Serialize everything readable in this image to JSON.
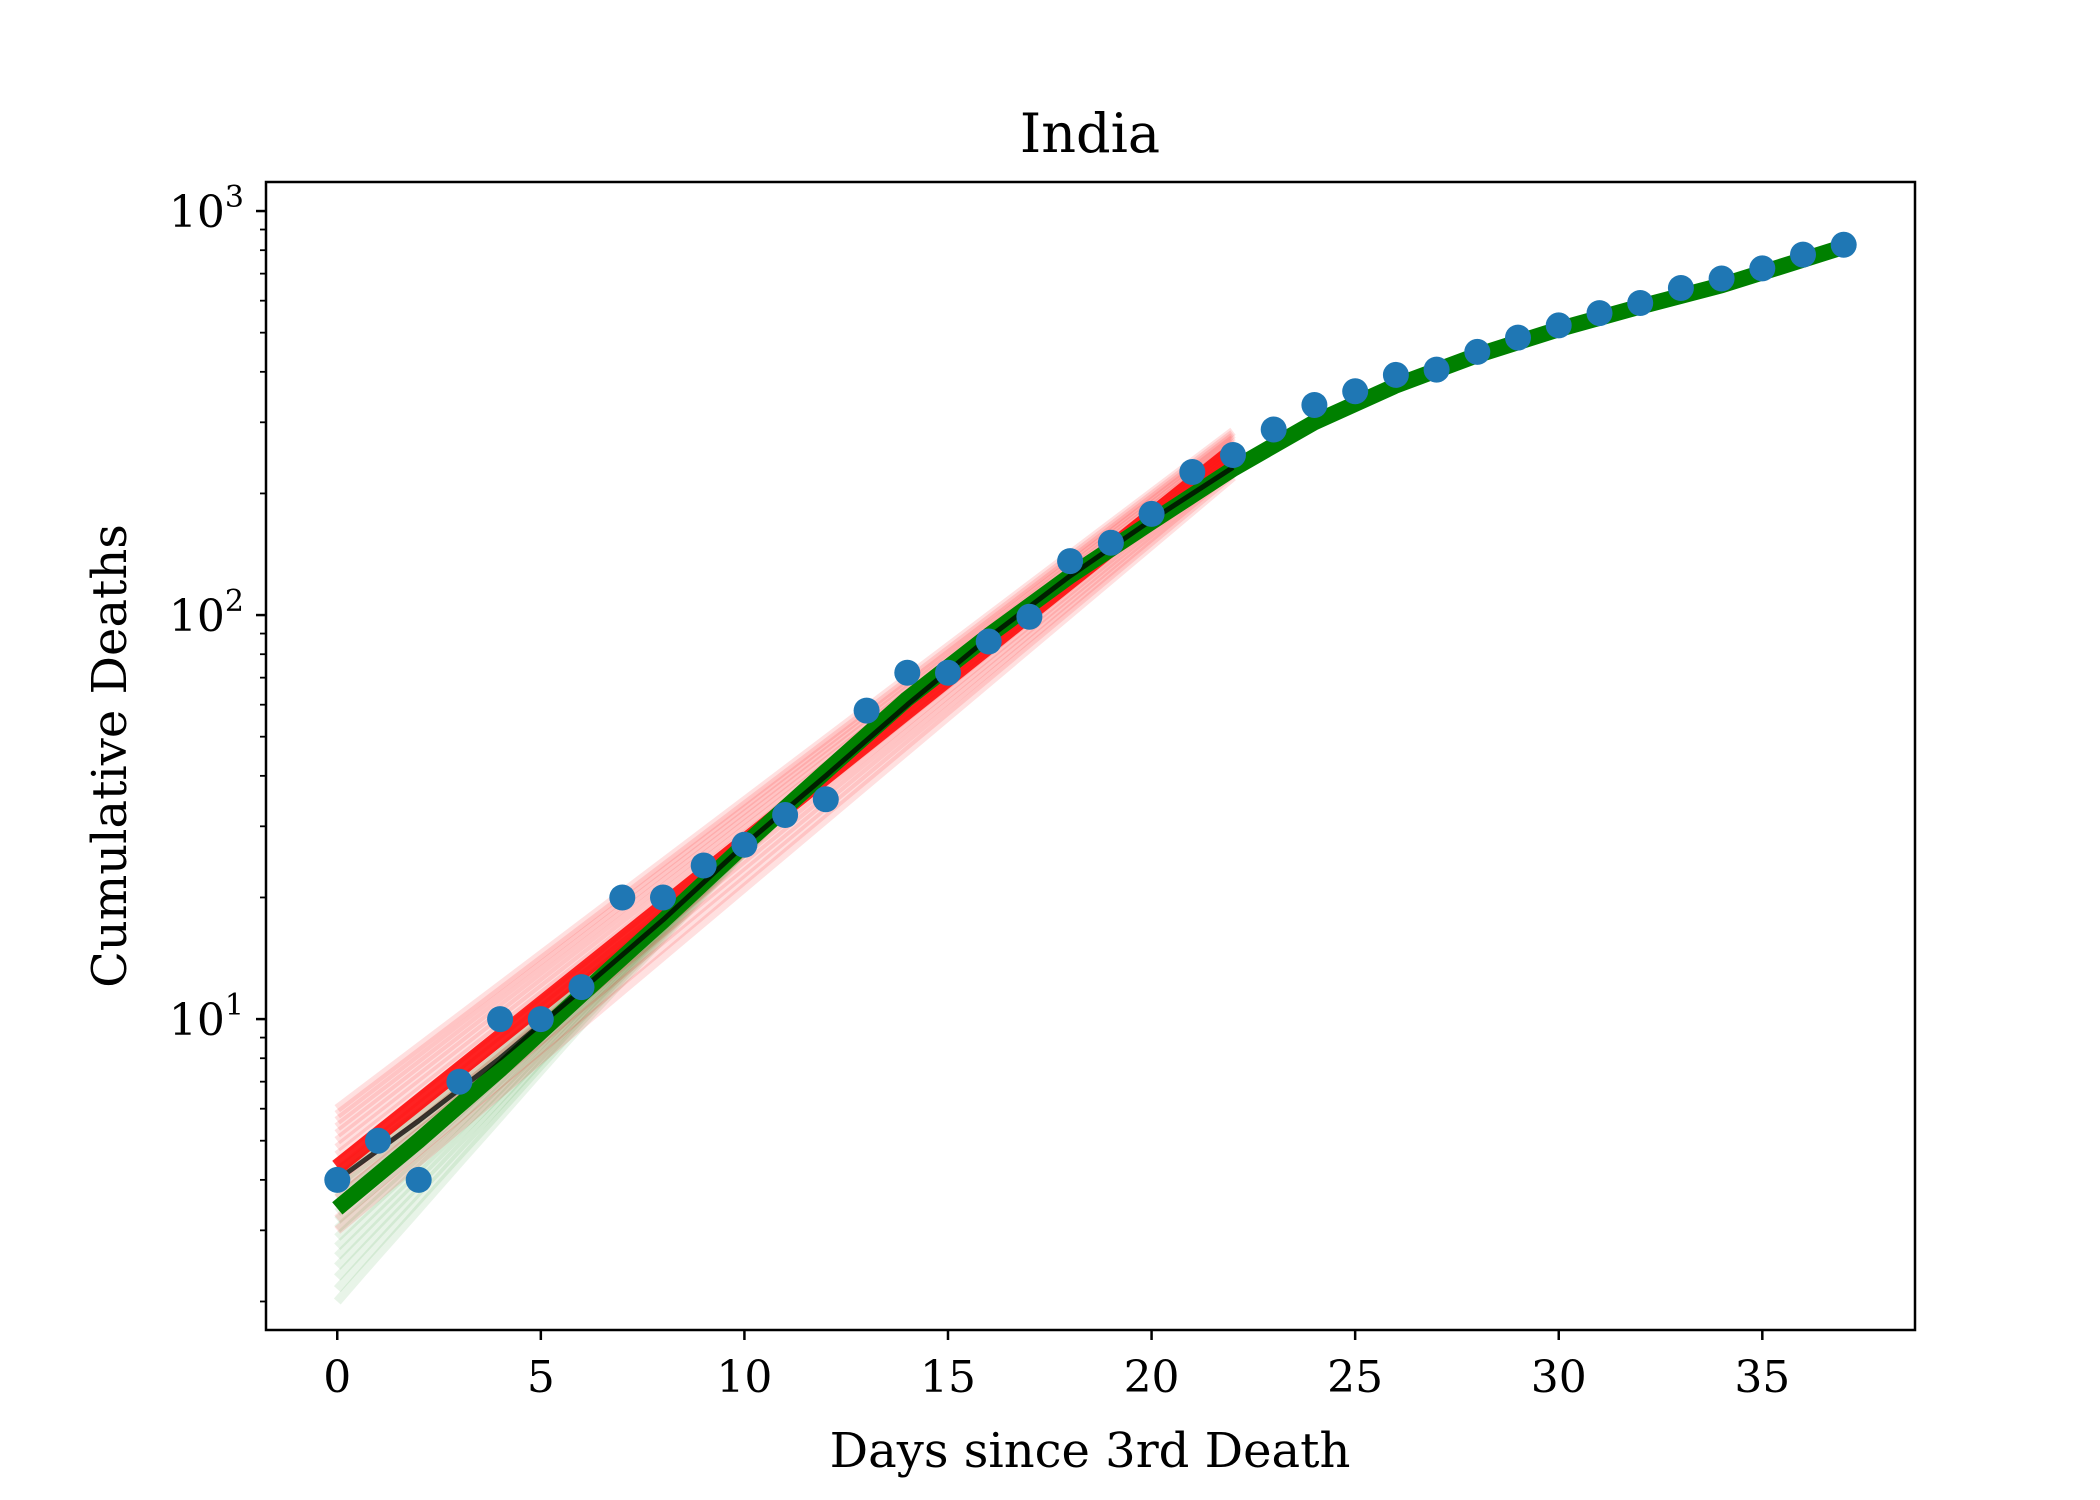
{
  "chart_data": {
    "type": "scatter",
    "title": "India",
    "xlabel": "Days since 3rd Death",
    "ylabel": "Cumulative Deaths",
    "yscale": "log",
    "xlim": [
      -1.75,
      38.75
    ],
    "ylim": [
      1.7,
      1180
    ],
    "grid": false,
    "legend": "none",
    "x_ticks": [
      0,
      5,
      10,
      15,
      20,
      25,
      30,
      35
    ],
    "y_ticks": [
      {
        "value": 10,
        "base": "10",
        "exp": "1"
      },
      {
        "value": 100,
        "base": "10",
        "exp": "2"
      },
      {
        "value": 1000,
        "base": "10",
        "exp": "3"
      }
    ],
    "observed": {
      "color": "#1f77b4",
      "x": [
        0,
        1,
        2,
        3,
        4,
        5,
        6,
        7,
        8,
        9,
        10,
        11,
        12,
        13,
        14,
        15,
        16,
        17,
        18,
        19,
        20,
        21,
        22,
        23,
        24,
        25,
        26,
        27,
        28,
        29,
        30,
        31,
        32,
        33,
        34,
        35,
        36,
        37
      ],
      "y": [
        4,
        5,
        4,
        7,
        10,
        10,
        12,
        20,
        20,
        24,
        27,
        32,
        35,
        58,
        72,
        72,
        86,
        99,
        136,
        151,
        178,
        226,
        249,
        288,
        331,
        358,
        393,
        405,
        448,
        486,
        521,
        559,
        592,
        645,
        681,
        721,
        780,
        825
      ]
    },
    "fit_early": {
      "color": "#ff0000",
      "x_range": [
        0,
        22
      ],
      "y_start": 4.3,
      "y_end": 255,
      "band_start": [
        3.0,
        6.0
      ],
      "band_end": [
        220,
        285
      ]
    },
    "fit_full": {
      "color": "#008000",
      "x": [
        0,
        2,
        4,
        6,
        8,
        10,
        12,
        14,
        16,
        18,
        20,
        22,
        24,
        26,
        28,
        30,
        32,
        34,
        37
      ],
      "y": [
        3.4,
        5.0,
        7.5,
        11.5,
        17.5,
        27,
        41,
        62,
        89,
        125,
        170,
        230,
        300,
        370,
        440,
        510,
        580,
        655,
        815
      ],
      "band_start": [
        2.0,
        4.2
      ]
    },
    "median_line": {
      "color": "#000000",
      "x": [
        0,
        2,
        4,
        6,
        8,
        10,
        12,
        14,
        16,
        18,
        20,
        22
      ],
      "y": [
        4.0,
        5.6,
        8.0,
        11.8,
        17.6,
        27,
        40,
        60,
        88,
        125,
        172,
        232
      ]
    }
  }
}
